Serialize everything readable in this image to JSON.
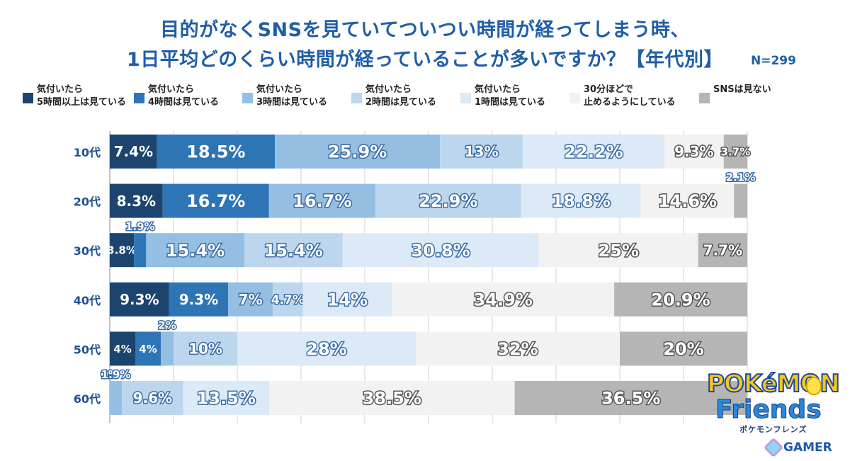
{
  "title_line1": "目的がなくSNSを見ていてついつい時間が経ってしまう時、",
  "title_line2": "1日平均どのくらい時間が経っていることが多いですか？【年代別】",
  "n_label": "N=299",
  "colors": [
    "#1c446f",
    "#2e75b6",
    "#94bfe3",
    "#bcd6ee",
    "#dce9f6",
    "#f2f2f2",
    "#b5b5b5"
  ],
  "legend": [
    {
      "label": "気付いたら\n5時間以上は見ている"
    },
    {
      "label": "気付いたら\n4時間は見ている"
    },
    {
      "label": "気付いたら\n3時間は見ている"
    },
    {
      "label": "気付いたら\n2時間は見ている"
    },
    {
      "label": "気付いたら\n1時間は見ている"
    },
    {
      "label": "30分ほどで\n止めるようにしている"
    },
    {
      "label": "SNSは見ない"
    }
  ],
  "chart_data": {
    "type": "bar",
    "orientation": "horizontal-stacked-100",
    "categories": [
      "10代",
      "20代",
      "30代",
      "40代",
      "50代",
      "60代"
    ],
    "series": [
      {
        "name": "気付いたら5時間以上は見ている",
        "values": [
          7.4,
          8.3,
          3.8,
          9.3,
          4,
          0
        ],
        "labels": [
          "7.4%",
          "8.3%",
          "3.8%",
          "9.3%",
          "4%",
          "0%"
        ]
      },
      {
        "name": "気付いたら4時間は見ている",
        "values": [
          18.5,
          16.7,
          1.9,
          9.3,
          4,
          0
        ],
        "labels": [
          "18.5%",
          "16.7%",
          "1.9%",
          "9.3%",
          "4%",
          "0%"
        ]
      },
      {
        "name": "気付いたら3時間は見ている",
        "values": [
          25.9,
          16.7,
          15.4,
          7,
          2,
          1.9
        ],
        "labels": [
          "25.9%",
          "16.7%",
          "15.4%",
          "7%",
          "2%",
          "1.9%"
        ]
      },
      {
        "name": "気付いたら2時間は見ている",
        "values": [
          13,
          22.9,
          15.4,
          4.7,
          10,
          9.6
        ],
        "labels": [
          "13%",
          "22.9%",
          "15.4%",
          "4.7%",
          "10%",
          "9.6%"
        ]
      },
      {
        "name": "気付いたら1時間は見ている",
        "values": [
          22.2,
          18.8,
          30.8,
          14,
          28,
          13.5
        ],
        "labels": [
          "22.2%",
          "18.8%",
          "30.8%",
          "14%",
          "28%",
          "13.5%"
        ]
      },
      {
        "name": "30分ほどで止めるようにしている",
        "values": [
          9.3,
          14.6,
          25,
          34.9,
          32,
          38.5
        ],
        "labels": [
          "9.3%",
          "14.6%",
          "25%",
          "34.9%",
          "32%",
          "38.5%"
        ]
      },
      {
        "name": "SNSは見ない",
        "values": [
          3.7,
          2.1,
          7.7,
          20.9,
          20,
          36.5
        ],
        "labels": [
          "3.7%",
          "2.1%",
          "7.7%",
          "20.9%",
          "20%",
          "36.5%"
        ]
      }
    ],
    "xlim": [
      0,
      100
    ],
    "grid": true,
    "legend_position": "top"
  },
  "logo": {
    "line1": "POKéMON",
    "line2": "Friends",
    "line3": "ポケモンフレンズ"
  },
  "watermark": "GAMER"
}
